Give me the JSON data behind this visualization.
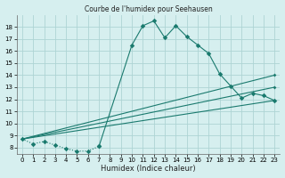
{
  "title": "Courbe de l'humidex pour Seehausen",
  "xlabel": "Humidex (Indice chaleur)",
  "background_color": "#d6efef",
  "grid_color": "#aed4d4",
  "line_color": "#1a7a6e",
  "xlim": [
    -0.5,
    23.5
  ],
  "ylim": [
    7.5,
    19.0
  ],
  "xticks": [
    0,
    1,
    2,
    3,
    4,
    5,
    6,
    7,
    8,
    9,
    10,
    11,
    12,
    13,
    14,
    15,
    16,
    17,
    18,
    19,
    20,
    21,
    22,
    23
  ],
  "yticks": [
    8,
    9,
    10,
    11,
    12,
    13,
    14,
    15,
    16,
    17,
    18
  ],
  "dotted_x": [
    0,
    1,
    2,
    3,
    4,
    5,
    6,
    7
  ],
  "dotted_y": [
    8.7,
    8.3,
    8.5,
    8.2,
    7.9,
    7.7,
    7.7,
    8.1
  ],
  "upper_curve_x": [
    7,
    10,
    11,
    12,
    13,
    14,
    15,
    16,
    17,
    18,
    19,
    20,
    21,
    22,
    23
  ],
  "upper_curve_y": [
    8.1,
    16.5,
    18.1,
    18.5,
    17.1,
    18.1,
    17.2,
    16.5,
    15.8,
    14.1,
    13.1,
    12.1,
    12.5,
    12.3,
    11.9
  ],
  "line1_x": [
    0,
    23
  ],
  "line1_y": [
    8.7,
    14.0
  ],
  "line2_x": [
    0,
    23
  ],
  "line2_y": [
    8.7,
    13.0
  ],
  "line3_x": [
    0,
    23
  ],
  "line3_y": [
    8.7,
    11.9
  ]
}
